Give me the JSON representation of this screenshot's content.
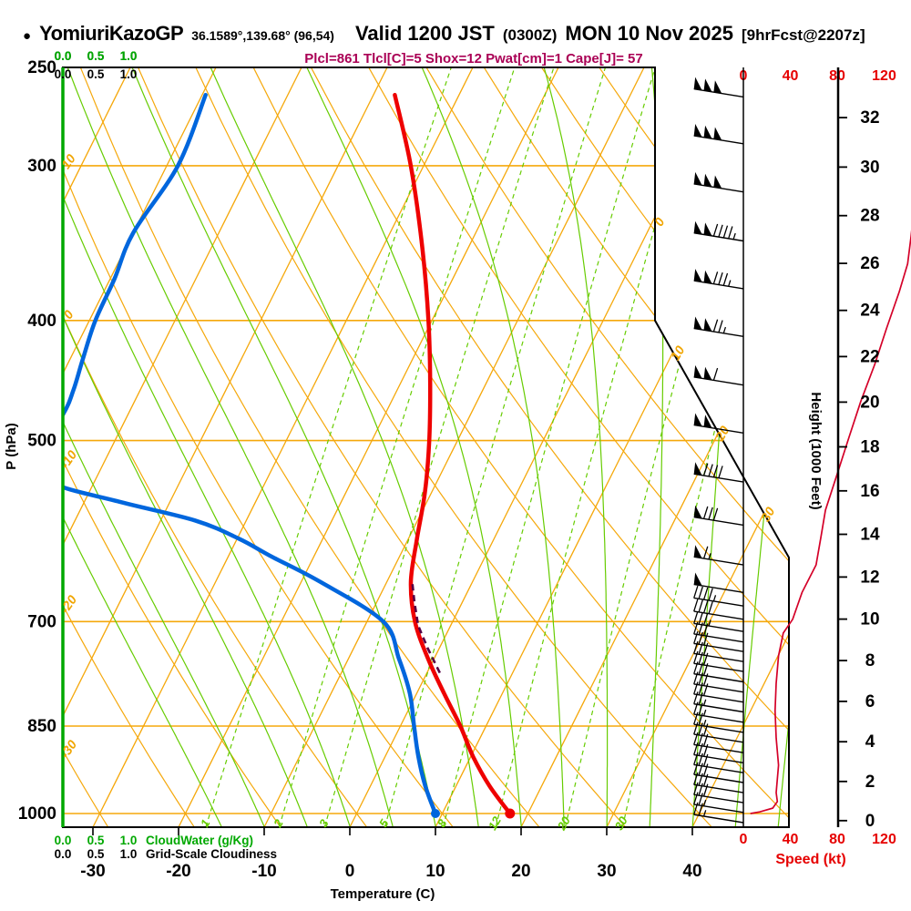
{
  "title": {
    "bullet": "●",
    "station": "YomiuriKazoGP",
    "coords": "36.1589°,139.68° (96,54)",
    "valid": "Valid 1200 JST",
    "zulu": "(0300Z)",
    "date": "MON 10 Nov 2025",
    "fcst": "[9hrFcst@2207z]"
  },
  "indices_line": "Plcl=861 Tlcl[C]=5 Shox=12 Pwat[cm]=1 Cape[J]= 57",
  "colors": {
    "isolines_orange": "#f5a80b",
    "adiabat_green": "#66cc00",
    "cloudwater_green": "#00a800",
    "temperature_red": "#ee0000",
    "dewpoint_blue": "#0066dd",
    "parcel_purple": "#550044",
    "speed_line_red": "#d40028",
    "indices_magenta": "#aa0055",
    "frame_black": "#000000"
  },
  "chart_data": {
    "type": "skew-t-log-p-sounding",
    "title": "YomiuriKazoGP Valid 1200 JST (0300Z) MON 10 Nov 2025",
    "pressure_axis": {
      "label": "P (hPa)",
      "ticks": [
        250,
        300,
        400,
        500,
        700,
        850,
        1000
      ],
      "range": [
        250,
        1025
      ]
    },
    "temperature_axis": {
      "label": "Temperature (C)",
      "ticks": [
        -30,
        -20,
        -10,
        0,
        10,
        20,
        30,
        40
      ]
    },
    "height_axis": {
      "label": "Height (1000 Feet)",
      "ticks": [
        0,
        2,
        4,
        6,
        8,
        10,
        12,
        14,
        16,
        18,
        20,
        22,
        24,
        26,
        28,
        30,
        32
      ]
    },
    "speed_axis": {
      "label": "Speed (kt)",
      "ticks": [
        0,
        40,
        80,
        120
      ]
    },
    "cloudwater_axis": {
      "label": "CloudWater (g/Kg)",
      "ticks": [
        "0.0",
        "0.5",
        "1.0"
      ]
    },
    "cloudiness_axis": {
      "label": "Grid-Scale Cloudiness",
      "ticks": [
        "0.0",
        "0.5",
        "1.0"
      ]
    },
    "isotherm_boundary_labels": [
      0,
      10,
      20,
      30
    ],
    "dry_adiabat_labels": [
      10,
      0,
      -10,
      -20,
      -30
    ],
    "mixing_ratio_lines": [
      1,
      2,
      3,
      5,
      8,
      12,
      20,
      30
    ],
    "temperature_profile": [
      [
        263,
        -37.5
      ],
      [
        300,
        -31.5
      ],
      [
        350,
        -25.3
      ],
      [
        400,
        -20.4
      ],
      [
        450,
        -16.5
      ],
      [
        500,
        -13.3
      ],
      [
        550,
        -10.8
      ],
      [
        600,
        -9.0
      ],
      [
        650,
        -7.2
      ],
      [
        700,
        -4.4
      ],
      [
        750,
        -0.7
      ],
      [
        800,
        3.2
      ],
      [
        850,
        7.0
      ],
      [
        900,
        10.3
      ],
      [
        950,
        13.9
      ],
      [
        1000,
        17.9
      ]
    ],
    "dewpoint_profile": [
      [
        263,
        -59.6
      ],
      [
        300,
        -58.7
      ],
      [
        340,
        -60.0
      ],
      [
        370,
        -59.5
      ],
      [
        400,
        -59.3
      ],
      [
        430,
        -58.5
      ],
      [
        455,
        -57.8
      ],
      [
        476,
        -57.6
      ],
      [
        510,
        -58.5
      ],
      [
        540,
        -55.0
      ],
      [
        560,
        -46.0
      ],
      [
        580,
        -36.0
      ],
      [
        600,
        -29.8
      ],
      [
        620,
        -25.0
      ],
      [
        650,
        -17.8
      ],
      [
        700,
        -8.1
      ],
      [
        750,
        -4.1
      ],
      [
        800,
        -0.8
      ],
      [
        850,
        1.6
      ],
      [
        900,
        3.9
      ],
      [
        950,
        6.4
      ],
      [
        1000,
        9.2
      ]
    ],
    "parcel_path": [
      [
        770,
        1.5
      ],
      [
        735,
        -1.4
      ],
      [
        705,
        -3.8
      ],
      [
        675,
        -5.6
      ],
      [
        649,
        -7.1
      ]
    ],
    "surface": {
      "pressure": 1000,
      "temp_c": 17.9,
      "dewpoint_c": 9.2
    },
    "wind_barbs": [
      [
        1017,
        25
      ],
      [
        998,
        27
      ],
      [
        980,
        28
      ],
      [
        962,
        29
      ],
      [
        944,
        30
      ],
      [
        927,
        30
      ],
      [
        910,
        29
      ],
      [
        893,
        28
      ],
      [
        876,
        28
      ],
      [
        860,
        27
      ],
      [
        844,
        27
      ],
      [
        828,
        27
      ],
      [
        813,
        28
      ],
      [
        798,
        28
      ],
      [
        783,
        28
      ],
      [
        768,
        29
      ],
      [
        754,
        29
      ],
      [
        740,
        30
      ],
      [
        727,
        31
      ],
      [
        713,
        33
      ],
      [
        697,
        40
      ],
      [
        680,
        45
      ],
      [
        663,
        52
      ],
      [
        630,
        65
      ],
      [
        585,
        80
      ],
      [
        540,
        90
      ],
      [
        493,
        100
      ],
      [
        451,
        110
      ],
      [
        412,
        125
      ],
      [
        377,
        135
      ],
      [
        345,
        145
      ],
      [
        315,
        150
      ],
      [
        288,
        150
      ],
      [
        264,
        150
      ]
    ],
    "speed_profile": [
      [
        250,
        150
      ],
      [
        275,
        150
      ],
      [
        309,
        148
      ],
      [
        342,
        143
      ],
      [
        360,
        140
      ],
      [
        379,
        133
      ],
      [
        406,
        122
      ],
      [
        434,
        112
      ],
      [
        465,
        100
      ],
      [
        497,
        90
      ],
      [
        532,
        80
      ],
      [
        569,
        70
      ],
      [
        599,
        66
      ],
      [
        630,
        62
      ],
      [
        663,
        50
      ],
      [
        697,
        42
      ],
      [
        715,
        34
      ],
      [
        746,
        30
      ],
      [
        785,
        28
      ],
      [
        826,
        27
      ],
      [
        869,
        28
      ],
      [
        914,
        30
      ],
      [
        962,
        28
      ],
      [
        978,
        29
      ],
      [
        990,
        25
      ],
      [
        997,
        14
      ],
      [
        1000,
        6
      ]
    ],
    "cloud_water_profile_gkg": 0,
    "grid_scale_cloudiness_profile": 0
  }
}
